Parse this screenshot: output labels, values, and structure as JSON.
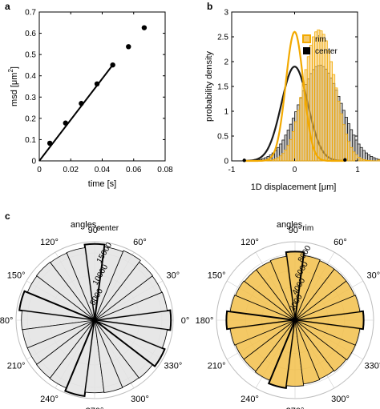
{
  "panel_labels": {
    "a": "a",
    "b": "b",
    "c": "c"
  },
  "chart_data": [
    {
      "id": "a",
      "type": "scatter",
      "xlabel_text": "time [s]",
      "ylabel_main": "msd [",
      "ylabel_unit": "μm",
      "ylabel_sup": "2",
      "ylabel_close": "]",
      "xlim": [
        0,
        0.08
      ],
      "ylim": [
        0,
        0.7
      ],
      "xticks": [
        0,
        0.02,
        0.04,
        0.06,
        0.08
      ],
      "xtick_labels": [
        "0",
        "0.02",
        "0.04",
        "0.06",
        "0.08"
      ],
      "yticks": [
        0,
        0.1,
        0.2,
        0.3,
        0.4,
        0.5,
        0.6,
        0.7
      ],
      "ytick_labels": [
        "0",
        "0.1",
        "0.2",
        "0.3",
        "0.4",
        "0.5",
        "0.6",
        "0.7"
      ],
      "points": {
        "x": [
          0.0067,
          0.0167,
          0.0267,
          0.0367,
          0.0467,
          0.0567,
          0.0667
        ],
        "y": [
          0.083,
          0.178,
          0.27,
          0.362,
          0.451,
          0.537,
          0.626
        ]
      },
      "fit_line": {
        "x": [
          0,
          0.0467
        ],
        "y": [
          0,
          0.451
        ]
      },
      "colors": {
        "points": "#000000",
        "line": "#000000"
      }
    },
    {
      "id": "b",
      "type": "bar",
      "xlabel_main": "1D displacement [",
      "xlabel_unit": "μm",
      "xlabel_close": "]",
      "ylabel": "probability density",
      "xlim": [
        -1,
        1
      ],
      "ylim": [
        0,
        3
      ],
      "xticks": [
        -1,
        0,
        1
      ],
      "xtick_labels": [
        "-1",
        "0",
        "1"
      ],
      "yticks": [
        0,
        0.5,
        1,
        1.5,
        2,
        2.5,
        3
      ],
      "ytick_labels": [
        "0",
        "0.5",
        "1",
        "1.5",
        "2",
        "2.5",
        "3"
      ],
      "legend": {
        "placement": "top-right",
        "entries": [
          "rim",
          "center"
        ]
      },
      "series": [
        {
          "name": "center",
          "color": "#1a1a1a",
          "fill": "#9a9a9a",
          "sigma": 0.21,
          "peak": 1.9,
          "hist": {
            "x0": -0.72,
            "binwidth": 0.04,
            "values": [
              0.005,
              0.01,
              0.015,
              0.02,
              0.03,
              0.045,
              0.065,
              0.09,
              0.12,
              0.16,
              0.21,
              0.27,
              0.34,
              0.42,
              0.52,
              0.62,
              0.74,
              0.86,
              0.99,
              1.13,
              1.27,
              1.41,
              1.54,
              1.65,
              1.76,
              1.84,
              1.9,
              1.92,
              1.93,
              1.9,
              1.85,
              1.77,
              1.67,
              1.56,
              1.43,
              1.3,
              1.16,
              1.02,
              0.88,
              0.75,
              0.63,
              0.52,
              0.42,
              0.34,
              0.27,
              0.21,
              0.16,
              0.12,
              0.09,
              0.065,
              0.045,
              0.03,
              0.02,
              0.015,
              0.01,
              0.01,
              0.005,
              0.005,
              0.003,
              0.002,
              0.002,
              0.001
            ]
          }
        },
        {
          "name": "rim",
          "color": "#f2a900",
          "fill": "#f5c96b",
          "sigma": 0.14,
          "peak": 2.6,
          "hist": {
            "x0": -0.72,
            "binwidth": 0.04,
            "values": [
              0,
              0,
              0,
              0,
              0,
              0.002,
              0.004,
              0.008,
              0.014,
              0.024,
              0.04,
              0.065,
              0.1,
              0.15,
              0.22,
              0.31,
              0.43,
              0.59,
              0.79,
              1.02,
              1.28,
              1.57,
              1.84,
              2.1,
              2.33,
              2.5,
              2.6,
              2.64,
              2.62,
              2.55,
              2.42,
              2.22,
              2.0,
              1.74,
              1.47,
              1.2,
              0.95,
              0.73,
              0.54,
              0.39,
              0.27,
              0.18,
              0.12,
              0.075,
              0.045,
              0.026,
              0.015,
              0.008,
              0.004,
              0.002,
              0.001,
              0.02,
              0.005,
              0,
              0,
              0,
              0,
              0,
              0,
              0,
              0,
              0
            ]
          }
        }
      ]
    },
    {
      "id": "c-left",
      "type": "polar_histogram",
      "title_main": "angles",
      "title_sub": "center",
      "theta_labels": [
        "0°",
        "30°",
        "60°",
        "90°",
        "120°",
        "150°",
        "180°",
        "210°",
        "240°",
        "270°",
        "300°",
        "330°"
      ],
      "theta_label_angles": [
        0,
        30,
        60,
        90,
        120,
        150,
        180,
        210,
        240,
        270,
        300,
        330
      ],
      "r_ticks": [
        5000,
        10000,
        15000
      ],
      "r_tick_labels": [
        "5000",
        "10000",
        "15000"
      ],
      "rmax": 17500,
      "fill": "#e3e3e3",
      "bins_deg": [
        -7.5,
        7.5,
        22.5,
        37.5,
        52.5,
        67.5,
        82.5,
        97.5,
        112.5,
        127.5,
        142.5,
        157.5,
        172.5,
        187.5,
        202.5,
        217.5,
        232.5,
        247.5,
        262.5,
        277.5,
        292.5,
        307.5,
        322.5,
        337.5,
        352.5
      ],
      "counts": [
        17000,
        16300,
        16200,
        16300,
        16800,
        16500,
        17000,
        16300,
        16200,
        16300,
        16200,
        16900,
        16300,
        16200,
        16200,
        16300,
        16400,
        17100,
        16200,
        16300,
        16200,
        16300,
        16900,
        16300
      ]
    },
    {
      "id": "c-right",
      "type": "polar_histogram",
      "title_main": "angles",
      "title_sub": "rim",
      "theta_labels": [
        "0°",
        "30°",
        "60°",
        "90°",
        "120°",
        "150°",
        "180°",
        "210°",
        "240°",
        "270°",
        "300°",
        "330°"
      ],
      "theta_label_angles": [
        0,
        30,
        60,
        90,
        120,
        150,
        180,
        210,
        240,
        270,
        300,
        330
      ],
      "r_ticks": [
        2000,
        4000,
        6000,
        8000
      ],
      "r_tick_labels": [
        "2000",
        "4000",
        "6000",
        "8000"
      ],
      "rmax": 9500,
      "fill": "#f2c04a",
      "bins_deg": [
        -7.5,
        7.5,
        22.5,
        37.5,
        52.5,
        67.5,
        82.5,
        97.5,
        112.5,
        127.5,
        142.5,
        157.5,
        172.5,
        187.5,
        202.5,
        217.5,
        232.5,
        247.5,
        262.5,
        277.5,
        292.5,
        307.5,
        322.5,
        337.5,
        352.5
      ],
      "counts": [
        8300,
        7900,
        7800,
        7800,
        7800,
        7900,
        8300,
        7800,
        7700,
        7700,
        7800,
        7900,
        8300,
        7900,
        7800,
        7800,
        7900,
        8300,
        8000,
        7800,
        7700,
        7800,
        7900,
        7900
      ]
    }
  ]
}
